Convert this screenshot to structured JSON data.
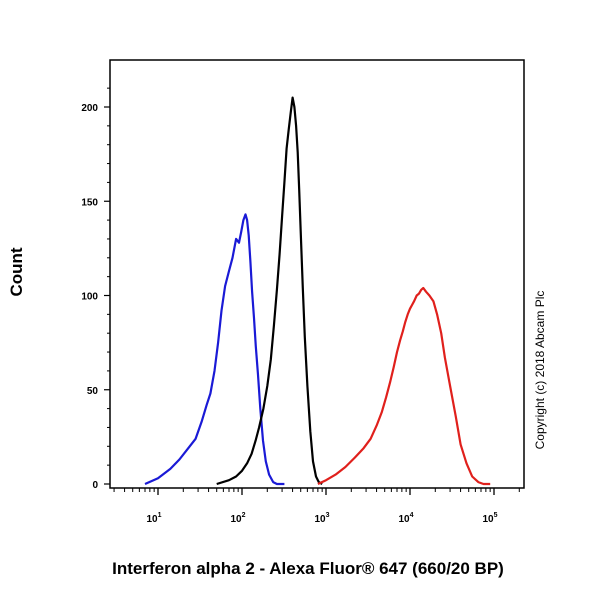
{
  "chart_data": {
    "type": "line",
    "xlabel": "Interferon alpha 2 - Alexa Fluor® 647 (660/20 BP)",
    "ylabel": "Count",
    "x_scale": "log",
    "xlim": [
      3,
      200000
    ],
    "ylim": [
      0,
      220
    ],
    "x_ticks": [
      {
        "base": "10",
        "exp": "1",
        "value": 10
      },
      {
        "base": "10",
        "exp": "2",
        "value": 100
      },
      {
        "base": "10",
        "exp": "3",
        "value": 1000
      },
      {
        "base": "10",
        "exp": "4",
        "value": 10000
      },
      {
        "base": "10",
        "exp": "5",
        "value": 100000
      }
    ],
    "y_ticks": [
      0,
      50,
      100,
      150,
      200
    ],
    "grid": false,
    "series": [
      {
        "color": "#1a1ad6",
        "x": [
          7,
          10,
          14,
          18,
          22,
          28,
          33,
          38,
          42,
          47,
          52,
          57,
          63,
          70,
          77,
          85,
          92,
          98,
          104,
          110,
          115,
          120,
          126,
          132,
          139,
          146,
          155,
          165,
          178,
          192,
          210,
          235,
          260,
          290,
          320
        ],
        "y": [
          0,
          3,
          8,
          13,
          18,
          24,
          33,
          42,
          48,
          60,
          75,
          92,
          105,
          113,
          120,
          130,
          128,
          134,
          140,
          143,
          140,
          132,
          118,
          102,
          88,
          73,
          58,
          40,
          23,
          12,
          5,
          1,
          0,
          0,
          0
        ]
      },
      {
        "color": "#000000",
        "x": [
          50,
          70,
          85,
          100,
          115,
          130,
          145,
          160,
          180,
          200,
          220,
          240,
          260,
          280,
          300,
          320,
          340,
          360,
          380,
          400,
          420,
          440,
          460,
          480,
          500,
          530,
          560,
          600,
          650,
          700,
          760,
          820,
          900
        ],
        "y": [
          0,
          2,
          4,
          7,
          11,
          16,
          23,
          30,
          40,
          52,
          66,
          84,
          103,
          122,
          142,
          160,
          178,
          188,
          197,
          205,
          200,
          190,
          176,
          156,
          134,
          104,
          78,
          52,
          28,
          12,
          4,
          1,
          0
        ]
      },
      {
        "color": "#e0201c",
        "x": [
          800,
          1000,
          1300,
          1700,
          2200,
          2800,
          3400,
          4000,
          4600,
          5200,
          5800,
          6400,
          7000,
          7600,
          8200,
          8800,
          9400,
          10000,
          10600,
          11200,
          12000,
          12800,
          13600,
          14400,
          15500,
          17000,
          19000,
          21000,
          23500,
          26000,
          30000,
          35000,
          40000,
          47000,
          55000,
          65000,
          75000,
          90000
        ],
        "y": [
          0,
          2,
          5,
          9,
          14,
          19,
          24,
          31,
          38,
          46,
          54,
          62,
          70,
          76,
          81,
          86,
          90,
          93,
          95,
          97,
          100,
          101,
          103,
          104,
          102,
          100,
          97,
          90,
          80,
          67,
          52,
          36,
          21,
          11,
          4,
          1,
          0,
          0
        ]
      }
    ]
  },
  "copyright": "Copyright (c) 2018 Abcam Plc"
}
